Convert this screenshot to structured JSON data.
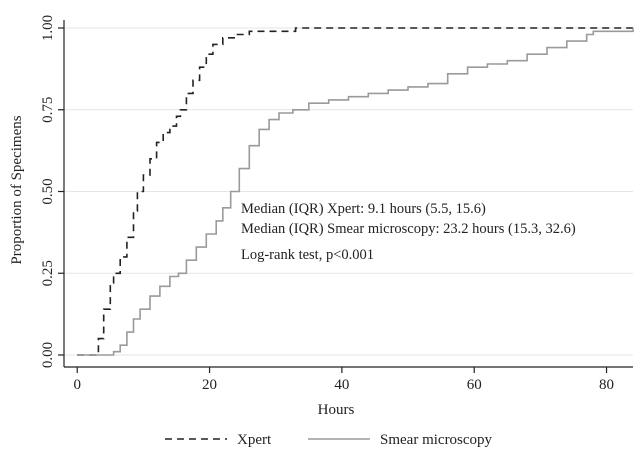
{
  "chart_data": {
    "type": "line",
    "xlabel": "Hours",
    "ylabel": "Proportion of Specimens",
    "xlim": [
      -2,
      84
    ],
    "ylim": [
      0,
      1
    ],
    "x_ticks": [
      0,
      20,
      40,
      60,
      80
    ],
    "x_tick_labels": [
      "0",
      "20",
      "40",
      "60",
      "80"
    ],
    "y_ticks": [
      0,
      0.25,
      0.5,
      0.75,
      1
    ],
    "y_tick_labels": [
      "0.00",
      "0.25",
      "0.50",
      "0.75",
      "1.00"
    ],
    "grid": true,
    "legend_position": "bottom",
    "annotations": [
      "Median (IQR) Xpert: 9.1 hours (5.5, 15.6)",
      "Median (IQR) Smear microscopy: 23.2 hours (15.3, 32.6)",
      "Log-rank test, p<0.001"
    ],
    "series": [
      {
        "name": "Xpert",
        "style": "dashed",
        "color": "#222222",
        "x": [
          0,
          2.5,
          3.2,
          4,
          5,
          5.5,
          6.5,
          7.5,
          8.5,
          9.1,
          10,
          11,
          12,
          13,
          14,
          15,
          15.6,
          16.5,
          17.5,
          18.5,
          19.5,
          20.5,
          22,
          24,
          26,
          28,
          30,
          33,
          40,
          50,
          60,
          70,
          80,
          84
        ],
        "y": [
          0,
          0,
          0.05,
          0.14,
          0.22,
          0.25,
          0.3,
          0.36,
          0.44,
          0.5,
          0.55,
          0.6,
          0.65,
          0.68,
          0.7,
          0.73,
          0.75,
          0.8,
          0.84,
          0.88,
          0.92,
          0.95,
          0.97,
          0.98,
          0.99,
          0.99,
          0.99,
          1.0,
          1.0,
          1.0,
          1.0,
          1.0,
          1.0,
          1.0
        ]
      },
      {
        "name": "Smear microscopy",
        "style": "solid",
        "color": "#9a9a9a",
        "x": [
          0,
          4.5,
          5.5,
          6.5,
          7.5,
          8.5,
          9.5,
          11,
          12.5,
          14,
          15.3,
          16.5,
          18,
          19.5,
          21,
          22,
          23.2,
          24.5,
          26,
          27.5,
          29,
          30.5,
          32.6,
          35,
          38,
          41,
          44,
          47,
          50,
          53,
          56,
          59,
          62,
          65,
          68,
          71,
          74,
          77,
          78,
          80,
          82,
          84
        ],
        "y": [
          0,
          0,
          0.01,
          0.03,
          0.07,
          0.11,
          0.14,
          0.18,
          0.21,
          0.24,
          0.25,
          0.29,
          0.33,
          0.37,
          0.41,
          0.45,
          0.5,
          0.57,
          0.64,
          0.69,
          0.72,
          0.74,
          0.75,
          0.77,
          0.78,
          0.79,
          0.8,
          0.81,
          0.82,
          0.83,
          0.86,
          0.88,
          0.89,
          0.9,
          0.92,
          0.94,
          0.96,
          0.98,
          0.99,
          0.99,
          0.99,
          1.0
        ]
      }
    ]
  }
}
